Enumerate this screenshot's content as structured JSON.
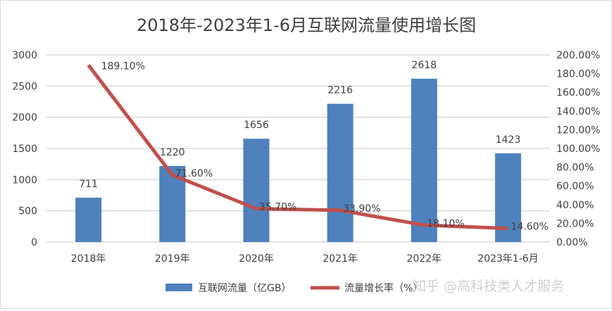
{
  "chart_data": {
    "type": "bar+line",
    "title": "2018年-2023年1-6月互联网流量使用增长图",
    "categories": [
      "2018年",
      "2019年",
      "2020年",
      "2021年",
      "2022年",
      "2023年1-6月"
    ],
    "series": [
      {
        "name": "互联网流量（亿GB）",
        "type": "bar",
        "axis": "left",
        "color": "#4f81bd",
        "values": [
          711,
          1220,
          1656,
          2216,
          2618,
          1423
        ],
        "labels": [
          "711",
          "1220",
          "1656",
          "2216",
          "2618",
          "1423"
        ]
      },
      {
        "name": "流量增长率（%）",
        "type": "line",
        "axis": "right",
        "color": "#c0504d",
        "values": [
          189.1,
          71.6,
          35.7,
          33.9,
          18.1,
          14.6
        ],
        "labels": [
          "189.10%",
          "71.60%",
          "35.70%",
          "33.90%",
          "18.10%",
          "14.60%"
        ]
      }
    ],
    "y_left": {
      "range": [
        0,
        3000
      ],
      "ticks": [
        "0",
        "500",
        "1000",
        "1500",
        "2000",
        "2500",
        "3000"
      ]
    },
    "y_right": {
      "range": [
        0,
        200
      ],
      "ticks": [
        "0.00%",
        "20.00%",
        "40.00%",
        "60.00%",
        "80.00%",
        "100.00%",
        "120.00%",
        "140.00%",
        "160.00%",
        "180.00%",
        "200.00%"
      ]
    },
    "grid": true,
    "legend": "bottom"
  },
  "watermark": "知乎 @高科技类人才服务"
}
